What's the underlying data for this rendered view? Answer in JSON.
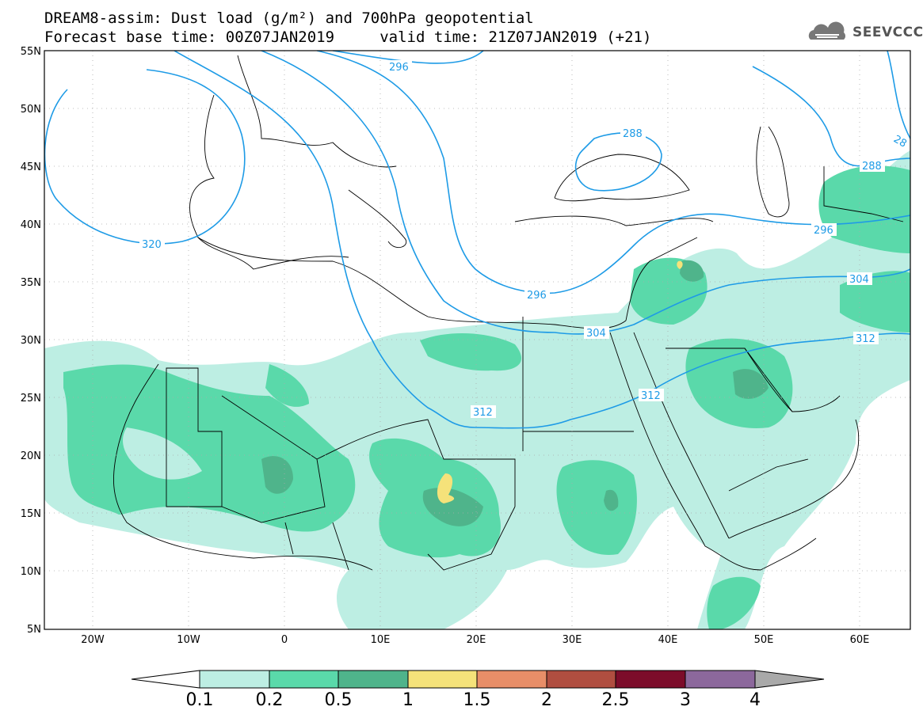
{
  "title_line1": "DREAM8-assim: Dust load (g/m²) and 700hPa geopotential",
  "title_line2": "Forecast base time: 00Z07JAN2019     valid time: 21Z07JAN2019 (+21)",
  "logo": {
    "icon": "cloud-icon",
    "text": "SEEVCCC"
  },
  "map": {
    "extent": {
      "lon": [
        -25,
        65
      ],
      "lat": [
        5,
        55
      ]
    },
    "lat_ticks": [
      "55N",
      "50N",
      "45N",
      "40N",
      "35N",
      "30N",
      "25N",
      "20N",
      "15N",
      "10N",
      "5N"
    ],
    "lon_ticks": [
      "20W",
      "10W",
      "0",
      "10E",
      "20E",
      "30E",
      "40E",
      "50E",
      "60E"
    ],
    "contour_labels": [
      "296",
      "320",
      "288",
      "288",
      "28",
      "296",
      "296",
      "304",
      "304",
      "312",
      "312",
      "312"
    ],
    "contour_color": "#1e9be6"
  },
  "colorbar": {
    "levels": [
      "0.1",
      "0.2",
      "0.5",
      "1",
      "1.5",
      "2",
      "2.5",
      "3",
      "4"
    ],
    "colors": [
      "#ffffff",
      "#bdeee3",
      "#5ad9aa",
      "#4fb48b",
      "#f5e27a",
      "#e88e68",
      "#b04e40",
      "#7c0c2a",
      "#8c689c",
      "#a9a9a9"
    ]
  }
}
